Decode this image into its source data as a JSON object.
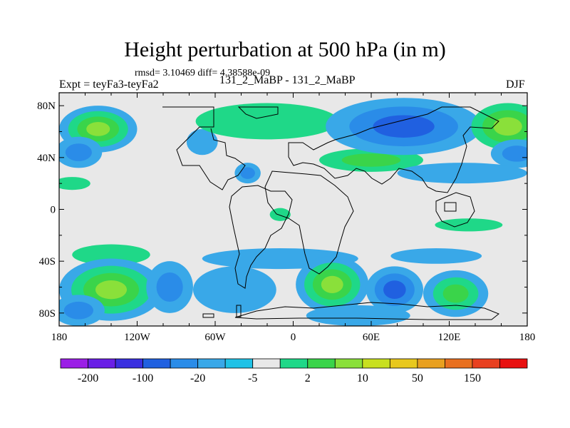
{
  "title": "Height perturbation at 500 hPa (in m)",
  "stats_text": "rmsd= 3.10469 diff= 4.38588e-09",
  "experiment_label": "Expt = teyFa3-teyFa2",
  "center_label": "131_2_MaBP - 131_2_MaBP",
  "season_label": "DJF",
  "chart_data": {
    "type": "heatmap",
    "title": "Height perturbation at 500 hPa (in m)",
    "xlabel": "",
    "ylabel": "",
    "xlim": [
      -180,
      180
    ],
    "ylim": [
      -90,
      90
    ],
    "x_ticks": [
      {
        "value": -180,
        "label": "180"
      },
      {
        "value": -120,
        "label": "120W"
      },
      {
        "value": -60,
        "label": "60W"
      },
      {
        "value": 0,
        "label": "0"
      },
      {
        "value": 60,
        "label": "60E"
      },
      {
        "value": 120,
        "label": "120E"
      },
      {
        "value": 180,
        "label": "180"
      }
    ],
    "y_ticks": [
      {
        "value": 80,
        "label": "80N"
      },
      {
        "value": 40,
        "label": "40N"
      },
      {
        "value": 0,
        "label": "0"
      },
      {
        "value": -40,
        "label": "40S"
      },
      {
        "value": -80,
        "label": "80S"
      }
    ],
    "colorbar": {
      "labels": [
        "-200",
        "-100",
        "-20",
        "-5",
        "2",
        "10",
        "50",
        "150"
      ],
      "colors": [
        "#9b1fe6",
        "#6a1fe6",
        "#3a2fe0",
        "#2060e0",
        "#2a8ce8",
        "#39a8e8",
        "#20c2e6",
        "#e8e8e8",
        "#1fd888",
        "#3ad44a",
        "#8ae03a",
        "#c8e020",
        "#e8c81e",
        "#e8a020",
        "#e87020",
        "#e84020",
        "#e81010"
      ]
    },
    "background_color": "#e8e8e8",
    "blobs": [
      {
        "lon": -150,
        "lat": 62,
        "rx": 30,
        "ry": 18,
        "levels": [
          "#39a8e8",
          "#1fd888",
          "#3ad44a",
          "#8ae03a"
        ]
      },
      {
        "lon": -165,
        "lat": 44,
        "rx": 18,
        "ry": 12,
        "levels": [
          "#39a8e8",
          "#2a8ce8"
        ]
      },
      {
        "lon": -170,
        "lat": 20,
        "rx": 14,
        "ry": 5,
        "levels": [
          "#1fd888"
        ]
      },
      {
        "lon": -70,
        "lat": 52,
        "rx": 12,
        "ry": 10,
        "levels": [
          "#39a8e8"
        ]
      },
      {
        "lon": -35,
        "lat": 28,
        "rx": 10,
        "ry": 8,
        "levels": [
          "#39a8e8",
          "#2a8ce8"
        ]
      },
      {
        "lon": -20,
        "lat": 68,
        "rx": 55,
        "ry": 14,
        "levels": [
          "#1fd888"
        ]
      },
      {
        "lon": 60,
        "lat": 38,
        "rx": 40,
        "ry": 9,
        "levels": [
          "#1fd888",
          "#3ad44a"
        ]
      },
      {
        "lon": 85,
        "lat": 64,
        "rx": 60,
        "ry": 22,
        "levels": [
          "#39a8e8",
          "#2a8ce8",
          "#2060e0"
        ]
      },
      {
        "lon": 165,
        "lat": 64,
        "rx": 28,
        "ry": 18,
        "levels": [
          "#1fd888",
          "#3ad44a",
          "#8ae03a"
        ]
      },
      {
        "lon": 172,
        "lat": 43,
        "rx": 20,
        "ry": 11,
        "levels": [
          "#39a8e8",
          "#2a8ce8"
        ]
      },
      {
        "lon": 130,
        "lat": 28,
        "rx": 50,
        "ry": 8,
        "levels": [
          "#39a8e8"
        ]
      },
      {
        "lon": -10,
        "lat": -4,
        "rx": 8,
        "ry": 5,
        "levels": [
          "#1fd888"
        ]
      },
      {
        "lon": 135,
        "lat": -12,
        "rx": 26,
        "ry": 5,
        "levels": [
          "#1fd888"
        ]
      },
      {
        "lon": -140,
        "lat": -35,
        "rx": 30,
        "ry": 8,
        "levels": [
          "#1fd888"
        ]
      },
      {
        "lon": -140,
        "lat": -62,
        "rx": 40,
        "ry": 24,
        "levels": [
          "#39a8e8",
          "#1fd888",
          "#3ad44a",
          "#8ae03a"
        ]
      },
      {
        "lon": -165,
        "lat": -78,
        "rx": 20,
        "ry": 12,
        "levels": [
          "#39a8e8",
          "#2a8ce8"
        ]
      },
      {
        "lon": -95,
        "lat": -60,
        "rx": 18,
        "ry": 20,
        "levels": [
          "#39a8e8",
          "#2a8ce8"
        ]
      },
      {
        "lon": -45,
        "lat": -62,
        "rx": 32,
        "ry": 18,
        "levels": [
          "#39a8e8"
        ]
      },
      {
        "lon": -10,
        "lat": -38,
        "rx": 60,
        "ry": 8,
        "levels": [
          "#39a8e8"
        ]
      },
      {
        "lon": 30,
        "lat": -58,
        "rx": 28,
        "ry": 22,
        "levels": [
          "#39a8e8",
          "#1fd888",
          "#3ad44a",
          "#8ae03a"
        ]
      },
      {
        "lon": 78,
        "lat": -62,
        "rx": 22,
        "ry": 18,
        "levels": [
          "#39a8e8",
          "#2a8ce8",
          "#2060e0"
        ]
      },
      {
        "lon": 125,
        "lat": -65,
        "rx": 25,
        "ry": 18,
        "levels": [
          "#39a8e8",
          "#1fd888",
          "#3ad44a"
        ]
      },
      {
        "lon": 50,
        "lat": -82,
        "rx": 40,
        "ry": 8,
        "levels": [
          "#39a8e8"
        ]
      },
      {
        "lon": 110,
        "lat": -36,
        "rx": 35,
        "ry": 6,
        "levels": [
          "#39a8e8"
        ]
      }
    ]
  }
}
